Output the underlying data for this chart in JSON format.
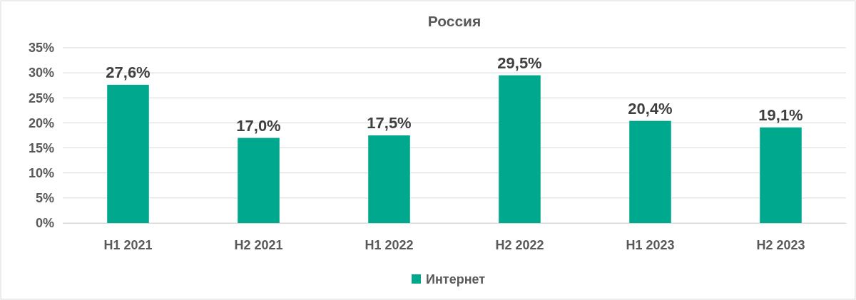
{
  "chart_data": {
    "type": "bar",
    "title": "Россия",
    "categories": [
      "H1 2021",
      "H2 2021",
      "H1 2022",
      "H2 2022",
      "H1 2023",
      "H2 2023"
    ],
    "series": [
      {
        "name": "Интернет",
        "color": "#00a88e",
        "values": [
          27.6,
          17.0,
          17.5,
          29.5,
          20.4,
          19.1
        ],
        "value_labels": [
          "27,6%",
          "17,0%",
          "17,5%",
          "29,5%",
          "20,4%",
          "19,1%"
        ]
      }
    ],
    "ylim": [
      0,
      35
    ],
    "yticks": [
      {
        "value": 0,
        "label": "0%"
      },
      {
        "value": 5,
        "label": "5%"
      },
      {
        "value": 10,
        "label": "10%"
      },
      {
        "value": 15,
        "label": "15%"
      },
      {
        "value": 20,
        "label": "20%"
      },
      {
        "value": 25,
        "label": "25%"
      },
      {
        "value": 30,
        "label": "30%"
      },
      {
        "value": 35,
        "label": "35%"
      }
    ],
    "grid": "y",
    "legend": "bottom"
  }
}
